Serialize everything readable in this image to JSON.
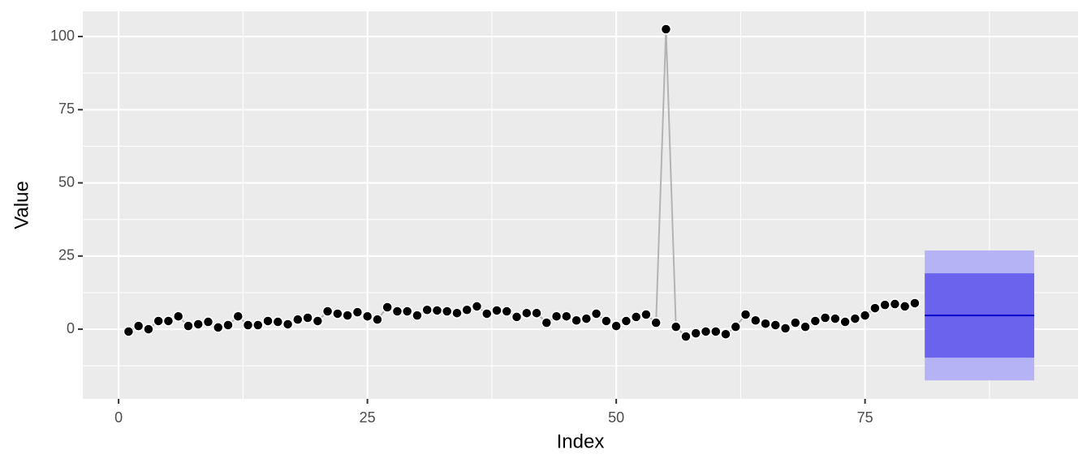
{
  "chart_data": {
    "type": "forecast",
    "x_label": "Index",
    "y_label": "Value",
    "xlim": [
      -3.6,
      96.4
    ],
    "ylim": [
      -23.8,
      108.6
    ],
    "xticks": [
      0,
      25,
      50,
      75
    ],
    "yticks": [
      0,
      25,
      50,
      75,
      100
    ],
    "grid": true,
    "line_color": "#b3b3b3",
    "point_color": "#000000",
    "x": [
      1,
      2,
      3,
      4,
      5,
      6,
      7,
      8,
      9,
      10,
      11,
      12,
      13,
      14,
      15,
      16,
      17,
      18,
      19,
      20,
      21,
      22,
      23,
      24,
      25,
      26,
      27,
      28,
      29,
      30,
      31,
      32,
      33,
      34,
      35,
      36,
      37,
      38,
      39,
      40,
      41,
      42,
      43,
      44,
      45,
      46,
      47,
      48,
      49,
      50,
      51,
      52,
      53,
      54,
      55,
      56,
      57,
      58,
      59,
      60,
      61,
      62,
      63,
      64,
      65,
      66,
      67,
      68,
      69,
      70,
      71,
      72,
      73,
      74,
      75,
      76,
      77,
      78,
      79,
      80
    ],
    "values": [
      -0.8,
      1.1,
      0,
      2.8,
      2.8,
      4.4,
      1.1,
      1.7,
      2.5,
      0.6,
      1.4,
      4.4,
      1.4,
      1.4,
      2.8,
      2.5,
      1.7,
      3.3,
      3.9,
      2.8,
      6.1,
      5.3,
      4.7,
      5.8,
      4.4,
      3.3,
      7.5,
      6.1,
      6.1,
      4.7,
      6.6,
      6.4,
      6.1,
      5.5,
      6.6,
      7.8,
      5.3,
      6.4,
      6.1,
      4.2,
      5.5,
      5.5,
      2.2,
      4.4,
      4.4,
      3.0,
      3.6,
      5.3,
      2.8,
      1.1,
      2.8,
      4.2,
      5.0,
      2.2,
      102.5,
      0.8,
      -2.5,
      -1.4,
      -0.8,
      -0.8,
      -1.7,
      0.8,
      5.0,
      3.0,
      1.9,
      1.4,
      0.3,
      2.2,
      0.8,
      2.8,
      3.9,
      3.6,
      2.5,
      3.6,
      4.7,
      7.2,
      8.3,
      8.6,
      7.8,
      8.9
    ],
    "forecast": {
      "x": [
        81,
        92
      ],
      "mean": [
        4.7,
        4.7
      ],
      "lo80": [
        -9.7,
        -9.7
      ],
      "hi80": [
        19.1,
        19.1
      ],
      "lo95": [
        -17.5,
        -17.5
      ],
      "hi95": [
        26.9,
        26.9
      ],
      "mean_color": "#0000cc",
      "band80_color": "#6b63ee",
      "band95_color": "#b5b3f5"
    }
  }
}
